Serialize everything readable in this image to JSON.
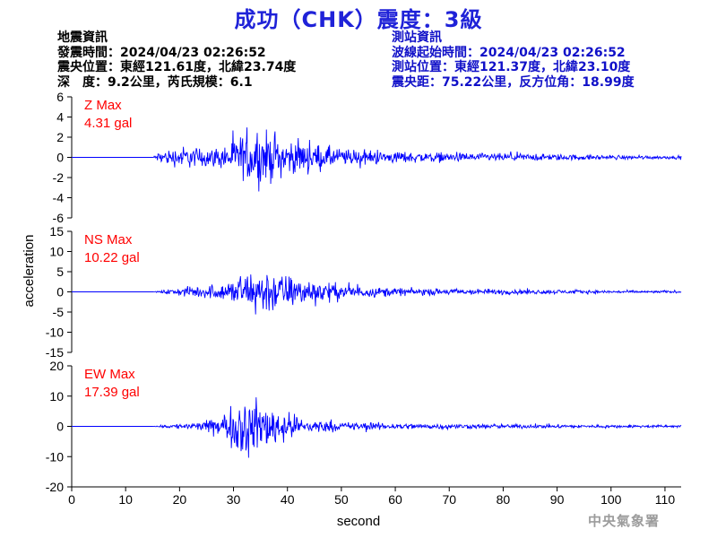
{
  "title": "成功（CHK）震度：3級",
  "info_left": [
    "地震資訊",
    "發震時間：2024/04/23 02:26:52",
    "震央位置：東經121.61度，北緯23.74度",
    "深　度：9.2公里，芮氏規模：6.1"
  ],
  "info_right": [
    "測站資訊",
    "波線起始時間：2024/04/23 02:26:52",
    "測站位置：東經121.37度，北緯23.10度",
    "震央距：75.22公里，反方位角：18.99度"
  ],
  "credit": "中央氣象署",
  "colors": {
    "trace": "#0000ff",
    "annotation": "#ff0000",
    "title": "#1f22d8",
    "station_info": "#1010c8"
  },
  "chart_data": {
    "type": "line",
    "ylabel": "acceleration",
    "xlabel": "second",
    "xlim": [
      0,
      113
    ],
    "xticks": [
      0,
      10,
      20,
      30,
      40,
      50,
      60,
      70,
      80,
      90,
      100,
      110
    ],
    "grid": false,
    "panels": [
      {
        "component": "Z",
        "label": "Z Max",
        "max_text": "4.31 gal",
        "ylim": [
          -6,
          6
        ],
        "yticks": [
          6,
          4,
          2,
          0,
          -2,
          -4,
          -6
        ],
        "envelope_x": [
          0,
          15,
          15.5,
          16,
          17,
          18,
          19,
          20,
          21,
          22,
          23,
          24,
          25,
          26,
          27,
          28,
          29,
          30,
          31,
          32,
          33,
          34,
          35,
          36,
          37,
          38,
          39,
          40,
          42,
          44,
          46,
          48,
          50,
          52,
          55,
          58,
          60,
          63,
          66,
          70,
          75,
          80,
          85,
          90,
          95,
          100,
          105,
          110,
          113
        ],
        "envelope_y": [
          0,
          0,
          0.4,
          0.8,
          1.1,
          1.3,
          1.4,
          1.6,
          1.8,
          1.6,
          1.5,
          1.6,
          1.5,
          1.4,
          1.6,
          1.9,
          2.3,
          2.7,
          3.2,
          3.6,
          4.0,
          3.8,
          4.31,
          4.0,
          3.6,
          3.3,
          2.9,
          2.7,
          2.4,
          2.2,
          1.9,
          1.7,
          1.4,
          1.2,
          1.1,
          1.0,
          0.9,
          0.85,
          0.8,
          0.7,
          0.65,
          0.6,
          0.55,
          0.5,
          0.4,
          0.35,
          0.3,
          0.25,
          0.25
        ]
      },
      {
        "component": "NS",
        "label": "NS Max",
        "max_text": "10.22 gal",
        "ylim": [
          -15,
          15
        ],
        "yticks": [
          15,
          10,
          5,
          0,
          -5,
          -10,
          -15
        ],
        "envelope_x": [
          0,
          15,
          16,
          18,
          20,
          22,
          24,
          26,
          28,
          30,
          32,
          34,
          35,
          36,
          37,
          38,
          40,
          42,
          44,
          46,
          48,
          50,
          52,
          55,
          58,
          60,
          63,
          66,
          70,
          75,
          80,
          85,
          90,
          95,
          100,
          105,
          110,
          113
        ],
        "envelope_y": [
          0,
          0,
          0.3,
          1.0,
          1.6,
          2.0,
          2.4,
          2.6,
          3.5,
          5.0,
          7.0,
          8.5,
          10.22,
          9.5,
          8.5,
          8.0,
          6.5,
          5.5,
          5.0,
          4.5,
          3.6,
          3.0,
          2.4,
          2.0,
          1.7,
          1.6,
          1.4,
          1.3,
          1.2,
          1.1,
          1.0,
          0.9,
          0.8,
          0.7,
          0.6,
          0.5,
          0.45,
          0.4
        ]
      },
      {
        "component": "EW",
        "label": "EW Max",
        "max_text": "17.39 gal",
        "ylim": [
          -20,
          20
        ],
        "yticks": [
          20,
          10,
          0,
          -10,
          -20
        ],
        "envelope_x": [
          0,
          15,
          16,
          18,
          20,
          22,
          24,
          26,
          28,
          30,
          32,
          34,
          35,
          36,
          37,
          38,
          40,
          42,
          44,
          46,
          48,
          50,
          52,
          55,
          58,
          60,
          63,
          66,
          70,
          75,
          80,
          85,
          90,
          95,
          100,
          105,
          110,
          113
        ],
        "envelope_y": [
          0,
          0,
          0.4,
          1.0,
          1.5,
          1.8,
          2.5,
          3.5,
          7.5,
          10.0,
          17.39,
          13.0,
          12.0,
          12.5,
          11.0,
          10.0,
          7.0,
          5.0,
          3.8,
          3.0,
          2.6,
          2.3,
          2.1,
          2.0,
          1.8,
          1.7,
          1.5,
          1.4,
          1.3,
          1.2,
          1.1,
          1.0,
          0.9,
          0.8,
          0.75,
          0.7,
          0.6,
          0.6
        ]
      }
    ]
  }
}
